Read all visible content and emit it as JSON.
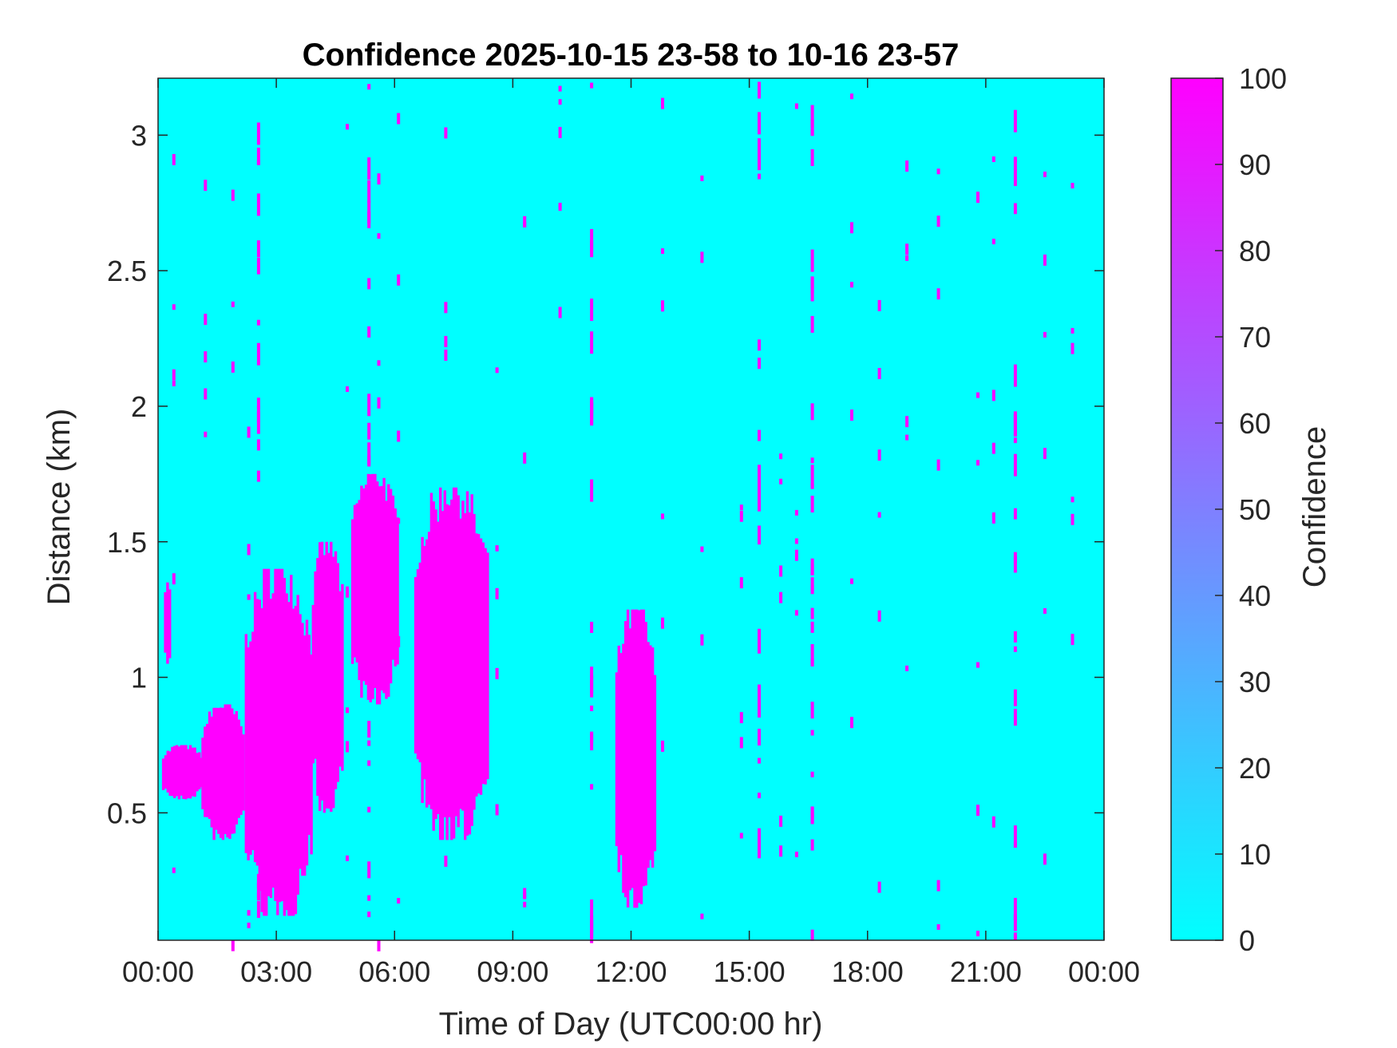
{
  "chart_data": {
    "type": "heatmap",
    "title": "Confidence 2025-10-15 23-58 to 10-16 23-57",
    "xlabel": "Time of Day (UTC00:00 hr)",
    "ylabel": "Distance (km)",
    "x_ticks": [
      "00:00",
      "03:00",
      "06:00",
      "09:00",
      "12:00",
      "15:00",
      "18:00",
      "21:00",
      "00:00"
    ],
    "xlim_hours": [
      0,
      24
    ],
    "y_ticks": [
      "0.5",
      "1",
      "1.5",
      "2",
      "2.5",
      "3"
    ],
    "ylim": [
      0.03,
      3.21
    ],
    "colorbar": {
      "label": "Confidence",
      "ticks": [
        "0",
        "10",
        "20",
        "30",
        "40",
        "50",
        "60",
        "70",
        "80",
        "90",
        "100"
      ],
      "range": [
        0,
        100
      ],
      "low_color": "#00FFFF",
      "high_color": "#FF00FF"
    },
    "background_value": 0,
    "background_color": "#00FFFF",
    "high_color": "#FF00FF",
    "high_confidence_regions": [
      {
        "x_start": 0.1,
        "x_end": 1.1,
        "y_low": 0.55,
        "y_high": 0.75
      },
      {
        "x_start": 0.15,
        "x_end": 0.35,
        "y_low": 1.05,
        "y_high": 1.35
      },
      {
        "x_start": 1.1,
        "x_end": 2.2,
        "y_low": 0.4,
        "y_high": 0.9
      },
      {
        "x_start": 2.2,
        "x_end": 3.9,
        "y_low": 0.12,
        "y_high": 1.4
      },
      {
        "x_start": 3.9,
        "x_end": 4.7,
        "y_low": 0.5,
        "y_high": 1.5
      },
      {
        "x_start": 4.9,
        "x_end": 6.1,
        "y_low": 0.9,
        "y_high": 1.75
      },
      {
        "x_start": 6.5,
        "x_end": 8.4,
        "y_low": 0.4,
        "y_high": 1.7
      },
      {
        "x_start": 11.6,
        "x_end": 12.6,
        "y_low": 0.15,
        "y_high": 1.25
      }
    ],
    "vertical_streaks_hours": [
      2.55,
      5.35,
      11.0,
      15.25,
      16.6,
      21.75
    ],
    "scatter_hours": [
      0.4,
      1.2,
      1.9,
      2.3,
      4.8,
      5.6,
      6.1,
      7.3,
      8.6,
      9.3,
      10.2,
      12.8,
      13.8,
      14.8,
      15.8,
      16.2,
      17.6,
      18.3,
      19.0,
      19.8,
      20.8,
      21.2,
      22.5,
      23.2
    ]
  }
}
